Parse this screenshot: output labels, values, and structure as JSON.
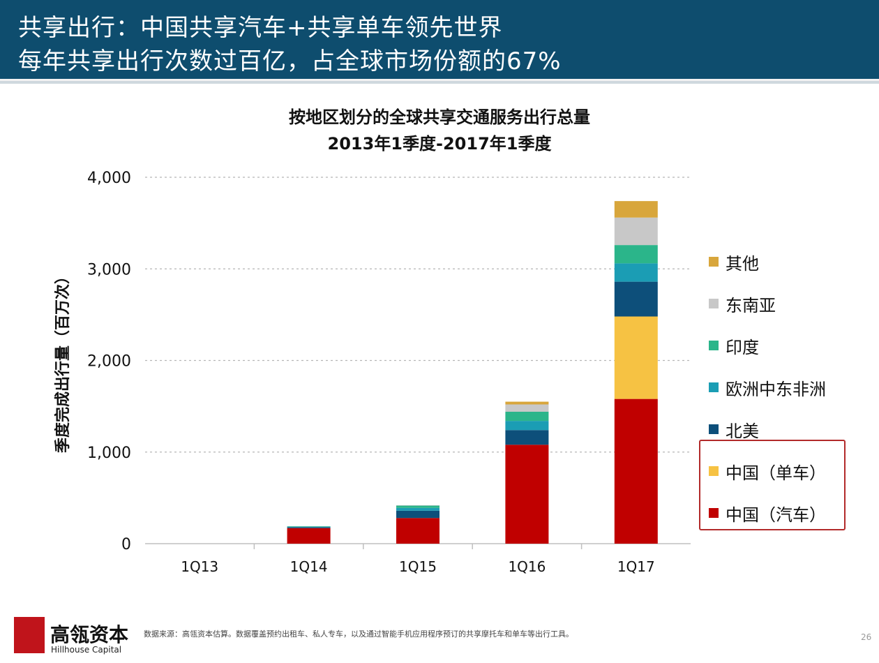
{
  "header": {
    "line1": "共享出行：中国共享汽车+共享单车领先世界",
    "line2": "每年共享出行次数过百亿，占全球市场份额的67%"
  },
  "chart_data": {
    "type": "bar",
    "stacked": true,
    "title": "按地区划分的全球共享交通服务出行总量",
    "subtitle": "2013年1季度-2017年1季度",
    "ylabel": "季度完成出行量（百万次）",
    "xlabel": "",
    "ylim": [
      0,
      4000
    ],
    "yticks": [
      0,
      1000,
      2000,
      3000,
      4000
    ],
    "ytick_labels": [
      "0",
      "1,000",
      "2,000",
      "3,000",
      "4,000"
    ],
    "grid": true,
    "legend_position": "right",
    "categories": [
      "1Q13",
      "1Q14",
      "1Q15",
      "1Q16",
      "1Q17"
    ],
    "series": [
      {
        "name": "中国（汽车）",
        "color": "#c00000",
        "values": [
          0,
          170,
          280,
          1080,
          1580
        ]
      },
      {
        "name": "中国（单车）",
        "color": "#f6c243",
        "values": [
          0,
          0,
          0,
          0,
          900
        ]
      },
      {
        "name": "北美",
        "color": "#0d4f7a",
        "values": [
          0,
          10,
          80,
          160,
          380
        ]
      },
      {
        "name": "欧洲中东非洲",
        "color": "#1b9db4",
        "values": [
          0,
          5,
          30,
          100,
          200
        ]
      },
      {
        "name": "印度",
        "color": "#2bb58a",
        "values": [
          0,
          5,
          25,
          100,
          200
        ]
      },
      {
        "name": "东南亚",
        "color": "#c8c8c8",
        "values": [
          0,
          0,
          5,
          80,
          300
        ]
      },
      {
        "name": "其他",
        "color": "#d8a63c",
        "values": [
          0,
          0,
          0,
          30,
          180
        ]
      }
    ],
    "legend_order": [
      "其他",
      "东南亚",
      "印度",
      "欧洲中东非洲",
      "北美",
      "中国（单车）",
      "中国（汽车）"
    ]
  },
  "footer": {
    "company_cn": "高瓴资本",
    "company_en": "Hillhouse Capital",
    "source": "数据来源：高瓴资本估算。数据覆盖预约出租车、私人专车，以及通过智能手机应用程序预订的共享摩托车和单车等出行工具。",
    "page": "26"
  }
}
